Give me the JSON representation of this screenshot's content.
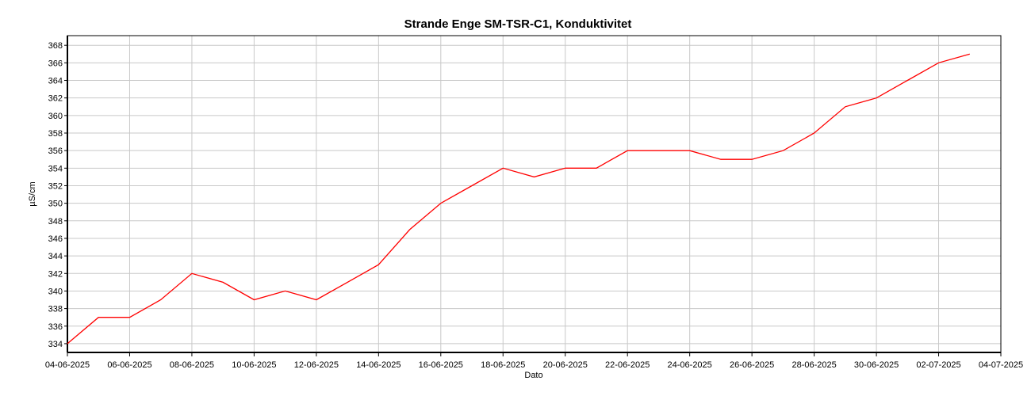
{
  "chart_data": {
    "type": "line",
    "title": "Strande Enge SM-TSR-C1, Konduktivitet",
    "x_label": "Dato",
    "y_label": "µS/cm",
    "x": [
      "04-06-2025",
      "05-06-2025",
      "06-06-2025",
      "07-06-2025",
      "08-06-2025",
      "09-06-2025",
      "10-06-2025",
      "11-06-2025",
      "12-06-2025",
      "13-06-2025",
      "14-06-2025",
      "15-06-2025",
      "16-06-2025",
      "17-06-2025",
      "18-06-2025",
      "19-06-2025",
      "20-06-2025",
      "21-06-2025",
      "22-06-2025",
      "23-06-2025",
      "24-06-2025",
      "25-06-2025",
      "26-06-2025",
      "27-06-2025",
      "28-06-2025",
      "29-06-2025",
      "30-06-2025",
      "01-07-2025",
      "02-07-2025",
      "03-07-2025"
    ],
    "series": [
      {
        "name": "Konduktivitet",
        "color": "#ff0000",
        "values": [
          334,
          337,
          337,
          339,
          342,
          341,
          339,
          340,
          339,
          341,
          343,
          347,
          350,
          352,
          354,
          353,
          354,
          354,
          356,
          356,
          356,
          355,
          355,
          356,
          358,
          361,
          362,
          364,
          366,
          367
        ]
      }
    ],
    "xlim": [
      "04-06-2025",
      "04-07-2025"
    ],
    "xticks": [
      "04-06-2025",
      "06-06-2025",
      "08-06-2025",
      "10-06-2025",
      "12-06-2025",
      "14-06-2025",
      "16-06-2025",
      "18-06-2025",
      "20-06-2025",
      "22-06-2025",
      "24-06-2025",
      "26-06-2025",
      "28-06-2025",
      "30-06-2025",
      "02-07-2025",
      "04-07-2025"
    ],
    "ylim": [
      333,
      369.1
    ],
    "yticks": [
      334,
      336,
      338,
      340,
      342,
      344,
      346,
      348,
      350,
      352,
      354,
      356,
      358,
      360,
      362,
      364,
      366,
      368
    ],
    "grid": true
  }
}
